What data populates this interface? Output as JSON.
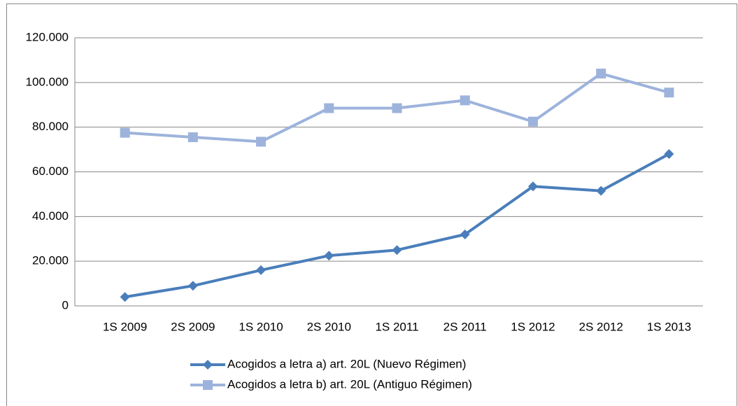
{
  "chart_data": {
    "type": "line",
    "categories": [
      "1S 2009",
      "2S 2009",
      "1S 2010",
      "2S 2010",
      "1S 2011",
      "2S 2011",
      "1S 2012",
      "2S 2012",
      "1S 2013"
    ],
    "series": [
      {
        "name": "Acogidos a letra a) art. 20L (Nuevo Régimen)",
        "color": "#4a7ebb",
        "marker": "diamond",
        "values": [
          4000,
          9000,
          16000,
          22500,
          25000,
          32000,
          53500,
          51500,
          68000
        ]
      },
      {
        "name": "Acogidos a letra b) art. 20L (Antiguo Régimen)",
        "color": "#9db3dc",
        "marker": "square",
        "values": [
          77500,
          75500,
          73500,
          88500,
          88500,
          92000,
          82500,
          104000,
          95500
        ]
      }
    ],
    "ylim": [
      0,
      120000
    ],
    "yticks": [
      0,
      {
        "value": 20000,
        "label": "20.000"
      },
      {
        "value": 40000,
        "label": "40.000"
      },
      {
        "value": 60000,
        "label": "60.000"
      },
      {
        "value": 80000,
        "label": "80.000"
      },
      {
        "value": 100000,
        "label": "100.000"
      },
      {
        "value": 120000,
        "label": "120.000"
      }
    ],
    "grid": true,
    "legend": "bottom"
  }
}
